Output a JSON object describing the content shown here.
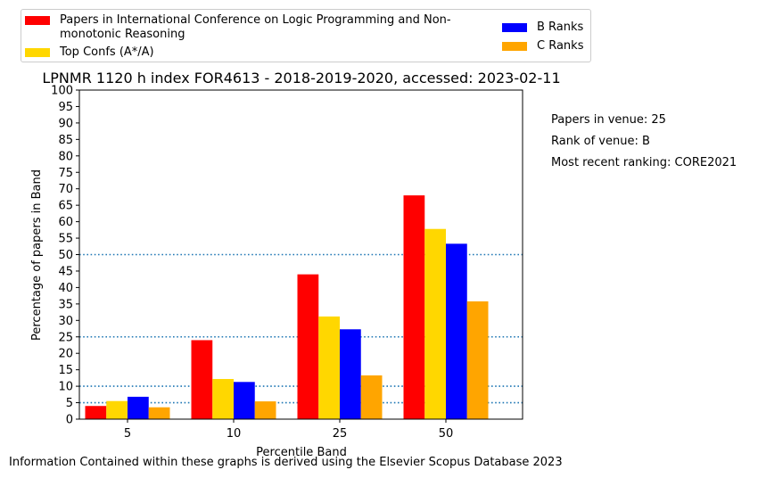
{
  "chart_data": {
    "type": "bar",
    "title": "LPNMR 1120 h index FOR4613 - 2018-2019-2020, accessed: 2023-02-11",
    "xlabel": "Percentile Band",
    "ylabel": "Percentage of papers in Band",
    "categories": [
      "5",
      "10",
      "25",
      "50"
    ],
    "ylim": [
      0,
      100
    ],
    "yticks": [
      0,
      5,
      10,
      15,
      20,
      25,
      30,
      35,
      40,
      45,
      50,
      55,
      60,
      65,
      70,
      75,
      80,
      85,
      90,
      95,
      100
    ],
    "reference_lines": [
      5,
      10,
      25,
      50
    ],
    "reference_line_color": "#1f77b4",
    "series": [
      {
        "name": "Papers in International Conference on Logic Programming and Non-monotonic Reasoning",
        "color": "#ff0000",
        "values": [
          4,
          24,
          44,
          68
        ]
      },
      {
        "name": "Top Confs (A*/A)",
        "color": "#ffd700",
        "values": [
          5.5,
          12.2,
          31.2,
          57.8
        ]
      },
      {
        "name": "B Ranks",
        "color": "#0000ff",
        "values": [
          6.8,
          11.3,
          27.3,
          53.3
        ]
      },
      {
        "name": "C Ranks",
        "color": "#ffa500",
        "values": [
          3.6,
          5.4,
          13.3,
          35.8
        ]
      }
    ],
    "legend_position": "top"
  },
  "legend": {
    "items": [
      {
        "line1": "Papers in International Conference on Logic Programming and Non-",
        "line2": "monotonic Reasoning"
      },
      {
        "line1": "Top Confs (A*/A)"
      },
      {
        "line1": "B Ranks"
      },
      {
        "line1": "C Ranks"
      }
    ]
  },
  "side_notes": {
    "papers": "Papers in venue: 25",
    "rank": "Rank of venue: B",
    "ranking": "Most recent ranking: CORE2021"
  },
  "footer": "Information Contained within these graphs is derived using the Elsevier Scopus Database 2023"
}
